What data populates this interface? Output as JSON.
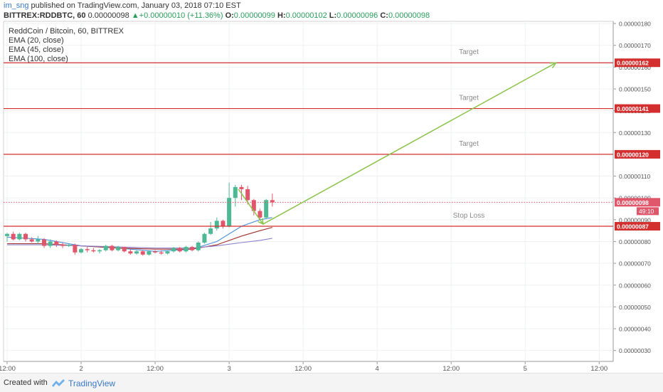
{
  "header": {
    "user": "im_sng",
    "published": "published on TradingView.com, January 03, 2018 07:10 EST",
    "symbol": "BITTREX:RDDBTC, 60",
    "last": "0.00000098",
    "change_arrow": "▲",
    "change": "+0.00000010 (+11.36%)",
    "o_label": "O:",
    "o_val": "0.00000099",
    "h_label": "H:",
    "h_val": "0.00000102",
    "l_label": "L:",
    "l_val": "0.00000096",
    "c_label": "C:",
    "c_val": "0.00000098"
  },
  "legend": {
    "title": "ReddCoin / Bitcoin, 60, BITTREX",
    "ema20": "EMA (20, close)",
    "ema45": "EMA (45, close)",
    "ema100": "EMA (100, close)"
  },
  "footer": {
    "created": "Created with",
    "brand": "TradingView"
  },
  "colors": {
    "up": "#4cb894",
    "down": "#e0566a",
    "level": "#d32f2f",
    "ema20": "#4a90d9",
    "ema45": "#a0302a",
    "ema100": "#8c7fc9",
    "arrow": "#8bc34a"
  },
  "chart_data": {
    "type": "candlestick",
    "title": "ReddCoin / Bitcoin, 60, BITTREX",
    "ylim": [
      2.5e-07,
      1.81e-06
    ],
    "yticks": [
      {
        "v": 1.8e-06,
        "label": "0.00000180"
      },
      {
        "v": 1.7e-06,
        "label": "0.00000170"
      },
      {
        "v": 1.6e-06,
        "label": "0.00000160"
      },
      {
        "v": 1.5e-06,
        "label": "0.00000150"
      },
      {
        "v": 1.4e-06,
        "label": "0.00000140"
      },
      {
        "v": 1.3e-06,
        "label": "0.00000130"
      },
      {
        "v": 1.1e-06,
        "label": "0.00000110"
      },
      {
        "v": 1e-06,
        "label": "0.00000100"
      },
      {
        "v": 9e-07,
        "label": "0.00000090"
      },
      {
        "v": 8e-07,
        "label": "0.00000080"
      },
      {
        "v": 7e-07,
        "label": "0.00000070"
      },
      {
        "v": 6e-07,
        "label": "0.00000060"
      },
      {
        "v": 5e-07,
        "label": "0.00000050"
      },
      {
        "v": 4e-07,
        "label": "0.00000040"
      },
      {
        "v": 3e-07,
        "label": "0.00000030"
      }
    ],
    "xticks": [
      {
        "t": 0,
        "label": "12:00"
      },
      {
        "t": 12,
        "label": "2"
      },
      {
        "t": 24,
        "label": "12:00"
      },
      {
        "t": 36,
        "label": "3"
      },
      {
        "t": 48,
        "label": "12:00"
      },
      {
        "t": 60,
        "label": "4"
      },
      {
        "t": 72,
        "label": "12:00"
      },
      {
        "t": 84,
        "label": "5"
      },
      {
        "t": 96,
        "label": "12:00"
      }
    ],
    "levels": [
      {
        "v": 1.62e-06,
        "badge": "0.00000162",
        "text": "Target"
      },
      {
        "v": 1.41e-06,
        "badge": "0.00000141",
        "text": "Target"
      },
      {
        "v": 1.2e-06,
        "badge": "0.00000120",
        "text": "Target"
      },
      {
        "v": 8.7e-07,
        "badge": "0.00000087",
        "text": "Stop Loss"
      }
    ],
    "last_price": {
      "v": 9.8e-07,
      "badge": "0.00000098",
      "countdown": "49:10"
    },
    "candles": [
      {
        "t": 0,
        "o": 82.5,
        "h": 84,
        "l": 80,
        "c": 83.5
      },
      {
        "t": 1,
        "o": 83.5,
        "h": 84.5,
        "l": 80.5,
        "c": 81
      },
      {
        "t": 2,
        "o": 81,
        "h": 84,
        "l": 80.5,
        "c": 83.5
      },
      {
        "t": 3,
        "o": 83.5,
        "h": 84,
        "l": 80,
        "c": 81
      },
      {
        "t": 4,
        "o": 81,
        "h": 82,
        "l": 79.5,
        "c": 80
      },
      {
        "t": 5,
        "o": 80,
        "h": 82.5,
        "l": 79,
        "c": 81
      },
      {
        "t": 6,
        "o": 81,
        "h": 81.5,
        "l": 77,
        "c": 78
      },
      {
        "t": 7,
        "o": 78,
        "h": 81,
        "l": 77,
        "c": 80
      },
      {
        "t": 8,
        "o": 80,
        "h": 80.5,
        "l": 77.5,
        "c": 78.5
      },
      {
        "t": 9,
        "o": 78.5,
        "h": 79.5,
        "l": 77,
        "c": 78
      },
      {
        "t": 10,
        "o": 78,
        "h": 79,
        "l": 77.5,
        "c": 78.5
      },
      {
        "t": 11,
        "o": 78.5,
        "h": 79,
        "l": 74,
        "c": 75
      },
      {
        "t": 12,
        "o": 75,
        "h": 77,
        "l": 74.5,
        "c": 76.5
      },
      {
        "t": 13,
        "o": 76.5,
        "h": 77.5,
        "l": 75,
        "c": 76
      },
      {
        "t": 14,
        "o": 76,
        "h": 77,
        "l": 75,
        "c": 75.5
      },
      {
        "t": 15,
        "o": 75.5,
        "h": 76.5,
        "l": 74.5,
        "c": 76
      },
      {
        "t": 16,
        "o": 76,
        "h": 78.5,
        "l": 75.5,
        "c": 78
      },
      {
        "t": 17,
        "o": 78,
        "h": 78.5,
        "l": 75.5,
        "c": 76
      },
      {
        "t": 18,
        "o": 76,
        "h": 78,
        "l": 75.5,
        "c": 77.5
      },
      {
        "t": 19,
        "o": 77.5,
        "h": 77.5,
        "l": 75,
        "c": 75.5
      },
      {
        "t": 20,
        "o": 75.5,
        "h": 76.5,
        "l": 74,
        "c": 74.5
      },
      {
        "t": 21,
        "o": 74.5,
        "h": 76,
        "l": 74,
        "c": 75.5
      },
      {
        "t": 22,
        "o": 75.5,
        "h": 76,
        "l": 73.5,
        "c": 74
      },
      {
        "t": 23,
        "o": 74,
        "h": 76,
        "l": 73.5,
        "c": 75.5
      },
      {
        "t": 24,
        "o": 75.5,
        "h": 76,
        "l": 74.5,
        "c": 75
      },
      {
        "t": 25,
        "o": 75,
        "h": 76,
        "l": 74,
        "c": 74.5
      },
      {
        "t": 26,
        "o": 74.5,
        "h": 76,
        "l": 74,
        "c": 75.5
      },
      {
        "t": 27,
        "o": 75.5,
        "h": 77.5,
        "l": 75,
        "c": 77
      },
      {
        "t": 28,
        "o": 77,
        "h": 77.5,
        "l": 75,
        "c": 75.5
      },
      {
        "t": 29,
        "o": 75.5,
        "h": 78,
        "l": 75,
        "c": 77.5
      },
      {
        "t": 30,
        "o": 77.5,
        "h": 78,
        "l": 75.5,
        "c": 76
      },
      {
        "t": 31,
        "o": 76,
        "h": 80,
        "l": 75.5,
        "c": 79.5
      },
      {
        "t": 32,
        "o": 79.5,
        "h": 84,
        "l": 79,
        "c": 83.5
      },
      {
        "t": 33,
        "o": 83.5,
        "h": 89,
        "l": 83,
        "c": 86
      },
      {
        "t": 34,
        "o": 86,
        "h": 91,
        "l": 85,
        "c": 89.5
      },
      {
        "t": 35,
        "o": 89.5,
        "h": 90,
        "l": 86,
        "c": 87
      },
      {
        "t": 36,
        "o": 87,
        "h": 107,
        "l": 86.5,
        "c": 100
      },
      {
        "t": 37,
        "o": 100,
        "h": 106,
        "l": 96,
        "c": 105
      },
      {
        "t": 38,
        "o": 105,
        "h": 106,
        "l": 99,
        "c": 104
      },
      {
        "t": 39,
        "o": 104,
        "h": 105.5,
        "l": 97,
        "c": 99
      },
      {
        "t": 40,
        "o": 99,
        "h": 99.5,
        "l": 92,
        "c": 94
      },
      {
        "t": 41,
        "o": 94,
        "h": 95,
        "l": 90,
        "c": 91
      },
      {
        "t": 42,
        "o": 91,
        "h": 99.5,
        "l": 90.5,
        "c": 99
      },
      {
        "t": 43,
        "o": 99,
        "h": 102,
        "l": 96,
        "c": 98
      }
    ],
    "ema": [
      {
        "name": "EMA (20, close)",
        "color": "#4a90d9",
        "points": [
          [
            0,
            82
          ],
          [
            6,
            81
          ],
          [
            12,
            78
          ],
          [
            18,
            77
          ],
          [
            24,
            75.5
          ],
          [
            30,
            76.5
          ],
          [
            34,
            80
          ],
          [
            38,
            87
          ],
          [
            41,
            90
          ],
          [
            43,
            91
          ]
        ]
      },
      {
        "name": "EMA (45, close)",
        "color": "#a0302a",
        "points": [
          [
            0,
            79
          ],
          [
            6,
            79
          ],
          [
            12,
            78
          ],
          [
            18,
            77
          ],
          [
            24,
            76.5
          ],
          [
            30,
            76.5
          ],
          [
            34,
            78.5
          ],
          [
            38,
            82.5
          ],
          [
            41,
            85
          ],
          [
            43,
            86.5
          ]
        ]
      },
      {
        "name": "EMA (100, close)",
        "color": "#8c7fc9",
        "points": [
          [
            0,
            78.5
          ],
          [
            6,
            78.5
          ],
          [
            12,
            78
          ],
          [
            18,
            77.5
          ],
          [
            24,
            77
          ],
          [
            30,
            77
          ],
          [
            34,
            78
          ],
          [
            38,
            79.5
          ],
          [
            41,
            80.5
          ],
          [
            43,
            81.5
          ]
        ]
      }
    ],
    "arrow_path": [
      [
        37.5,
        104
      ],
      [
        41.5,
        88
      ],
      [
        89,
        162
      ]
    ]
  }
}
